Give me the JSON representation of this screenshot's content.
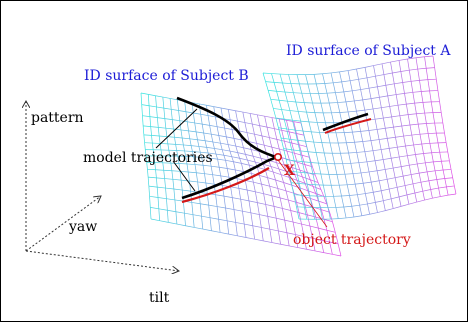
{
  "labels": {
    "surface_a": "ID surface of Subject A",
    "surface_b": "ID surface of Subject B",
    "axis_pattern": "pattern",
    "axis_yaw": "yaw",
    "axis_tilt": "tilt",
    "model_trajectories": "model trajectories",
    "object_trajectory": "object trajectory",
    "point_marker": "X"
  },
  "colors": {
    "surface_b_label": "#1c1cd6",
    "surface_a_label": "#1c1cd6",
    "object_label": "#d41818",
    "model_trajectory": "#000000",
    "object_trajectory": "#d41818",
    "mesh_cyan": "#39e3e0",
    "mesh_magenta": "#e24fe6",
    "mesh_violet": "#b37aea"
  }
}
